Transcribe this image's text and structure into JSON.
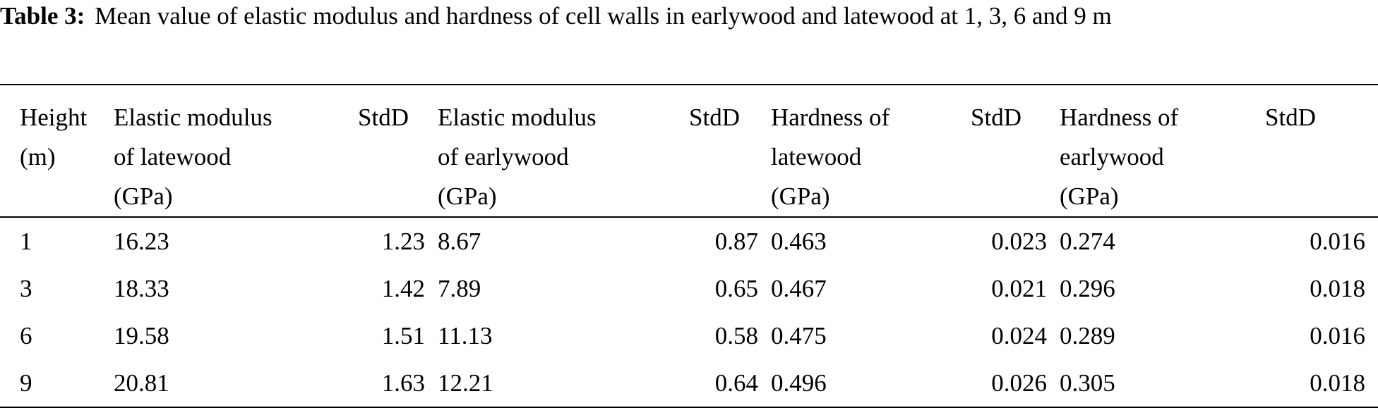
{
  "caption": {
    "label": "Table 3:",
    "text": "Mean value of elastic modulus and hardness of cell walls in earlywood and latewood at 1, 3, 6 and 9 m"
  },
  "table": {
    "headers": [
      [
        "Height",
        "(m)"
      ],
      [
        "Elastic modulus",
        "of latewood",
        "(GPa)"
      ],
      [
        "StdD"
      ],
      [
        "Elastic modulus",
        "of earlywood",
        "(GPa)"
      ],
      [
        "StdD"
      ],
      [
        "Hardness of",
        "latewood",
        "(GPa)"
      ],
      [
        "StdD"
      ],
      [
        "Hardness of",
        "earlywood",
        "(GPa)"
      ],
      [
        "StdD"
      ]
    ],
    "rows": [
      [
        "1",
        "16.23",
        "1.23",
        "8.67",
        "0.87",
        "0.463",
        "0.023",
        "0.274",
        "0.016"
      ],
      [
        "3",
        "18.33",
        "1.42",
        "7.89",
        "0.65",
        "0.467",
        "0.021",
        "0.296",
        "0.018"
      ],
      [
        "6",
        "19.58",
        "1.51",
        "11.13",
        "0.58",
        "0.475",
        "0.024",
        "0.289",
        "0.016"
      ],
      [
        "9",
        "20.81",
        "1.63",
        "12.21",
        "0.64",
        "0.496",
        "0.026",
        "0.305",
        "0.018"
      ]
    ]
  }
}
